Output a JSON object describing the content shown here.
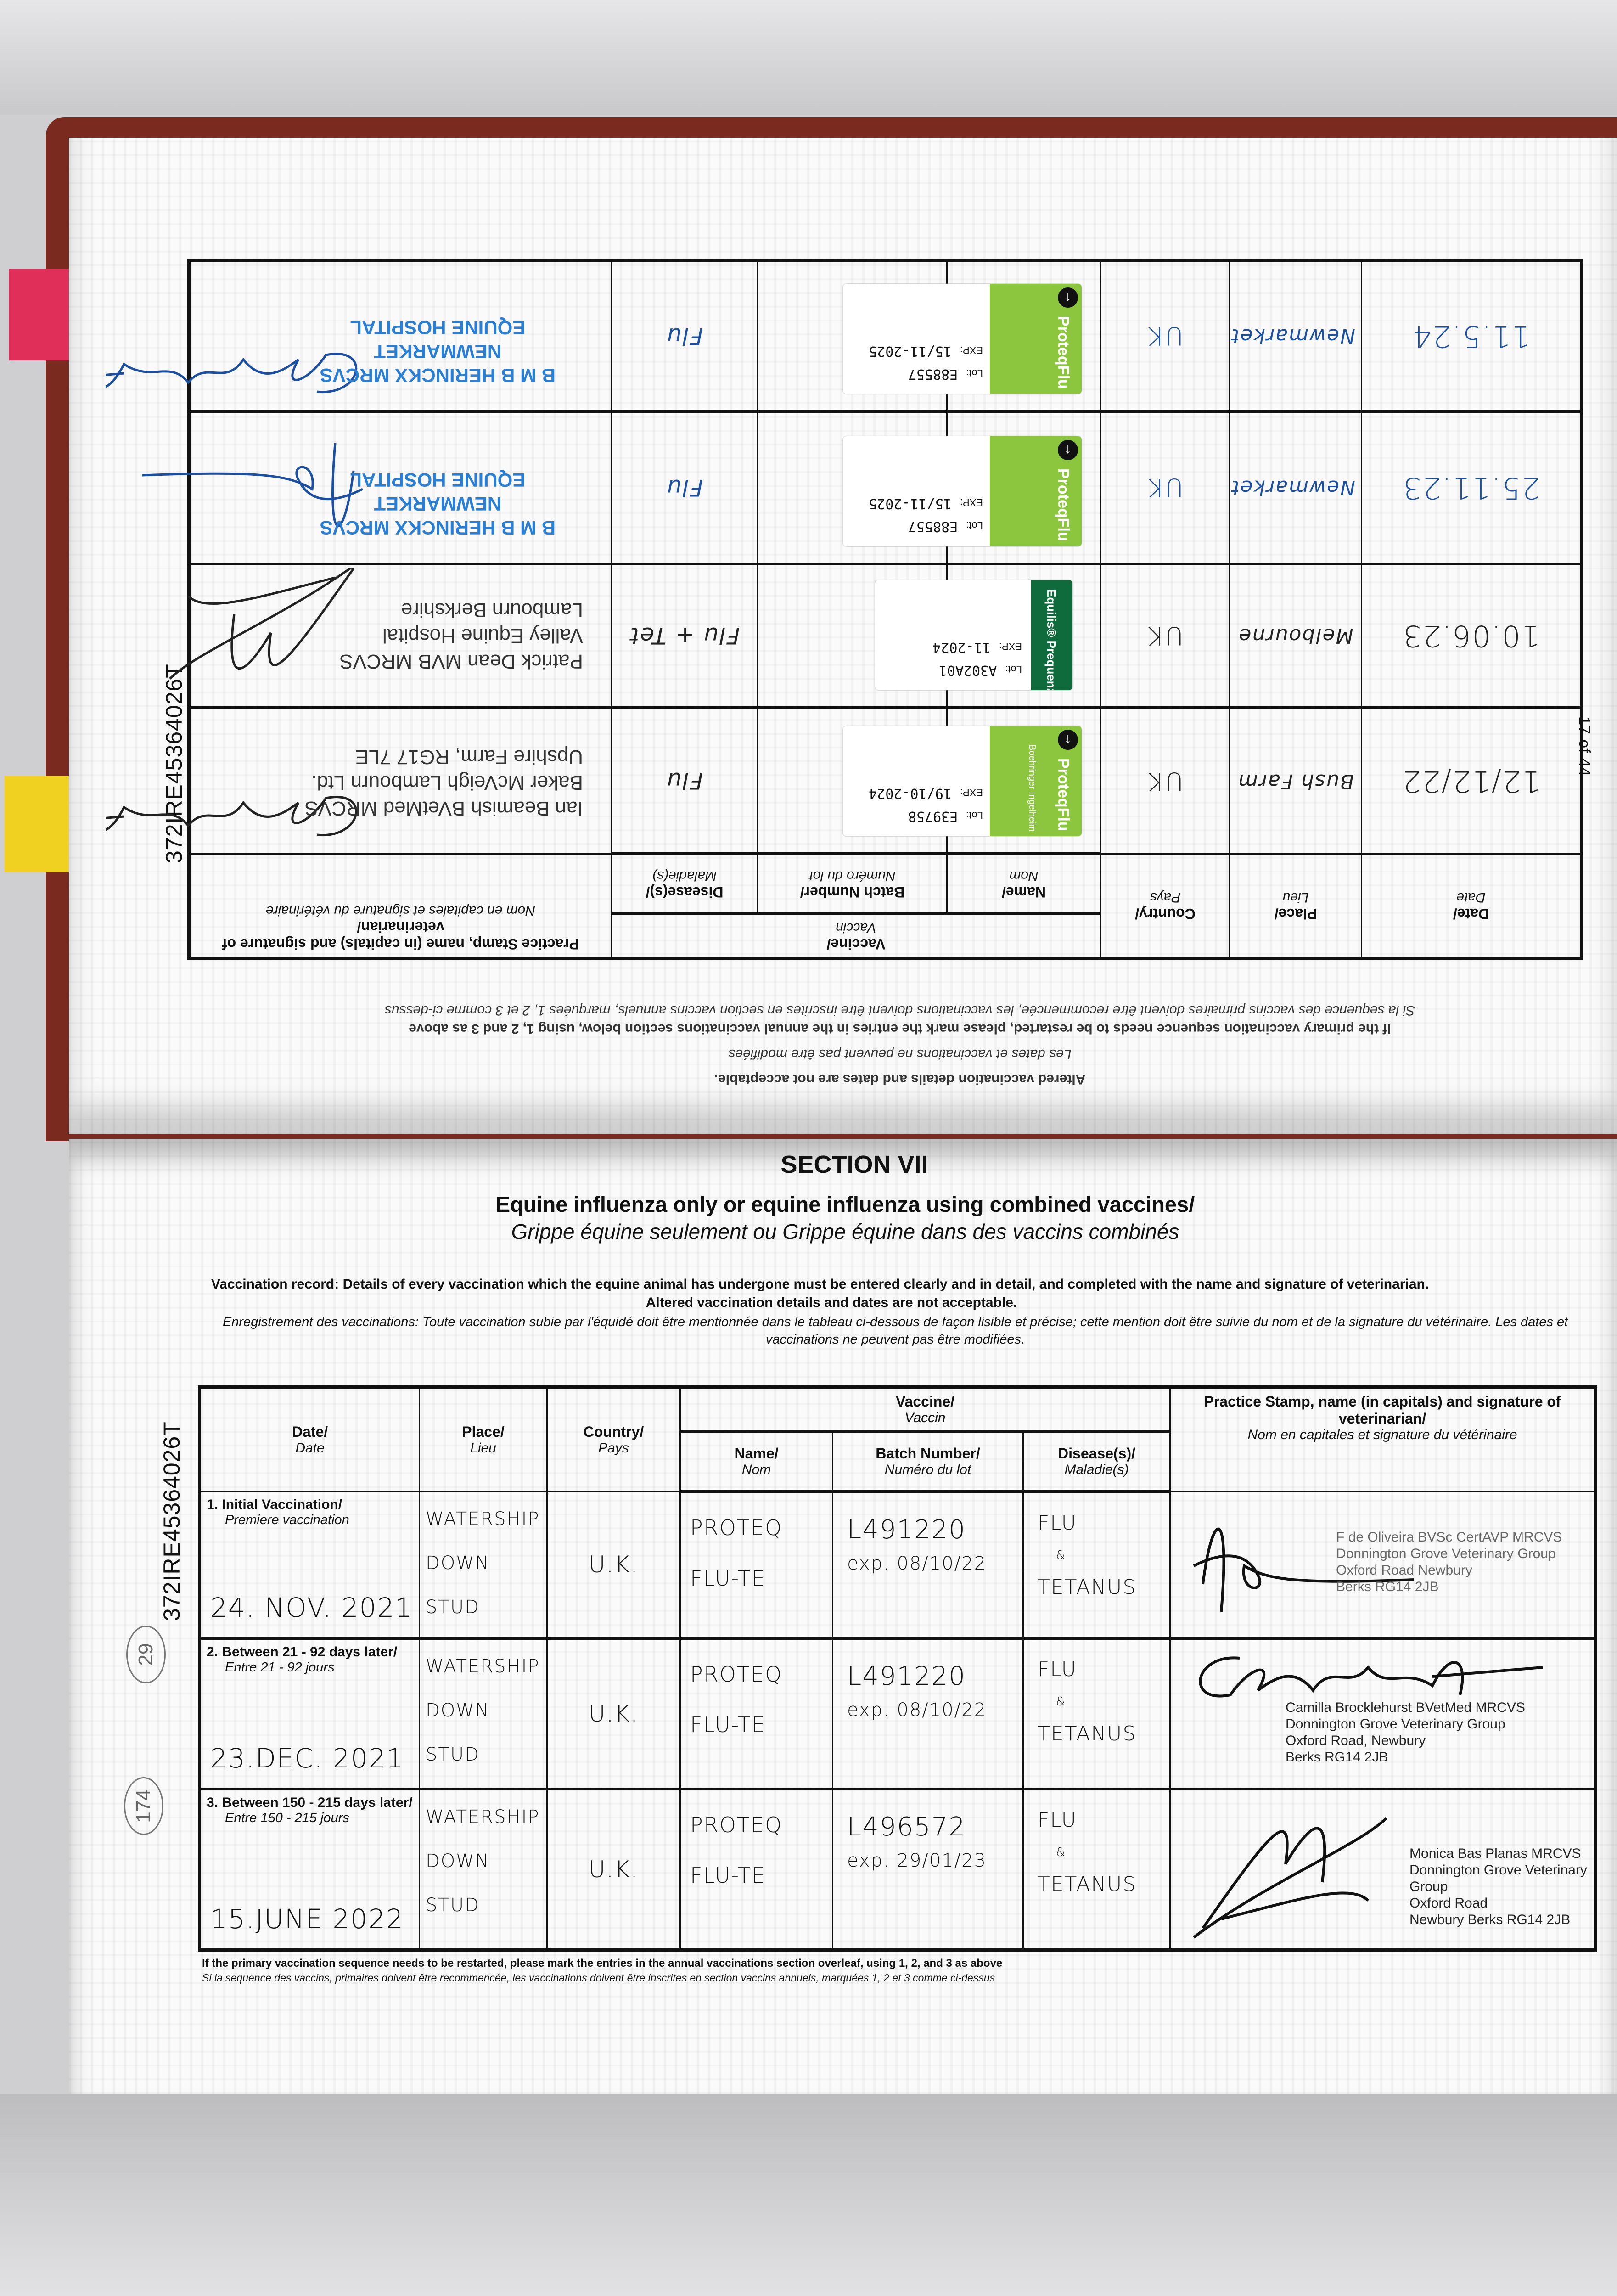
{
  "document_id": "372IRE45364026T",
  "page_number": "17 of 44",
  "circled_marks": [
    "29",
    "174"
  ],
  "colors": {
    "ink_black": "#111111",
    "ink_blue": "#1d4fa0",
    "stamp_blue": "#2a7fd4",
    "proteq_green": "#8cc63f",
    "equilis_green": "#0f6b3c",
    "tab_pink": "#e0305a",
    "tab_yellow": "#f0d020"
  },
  "headers": {
    "date": "Date/",
    "date_fr": "Date",
    "place": "Place/",
    "place_fr": "Lieu",
    "country": "Country/",
    "country_fr": "Pays",
    "vaccine": "Vaccine/",
    "vaccine_fr": "Vaccin",
    "name": "Name/",
    "name_fr": "Nom",
    "batch": "Batch Number/",
    "batch_fr": "Numéro du lot",
    "disease": "Disease(s)/",
    "disease_fr": "Maladie(s)",
    "practice": "Practice Stamp, name (in capitals) and signature of veterinarian/",
    "practice_fr": "Nom en capitales et signature du vétérinaire"
  },
  "previous_page": {
    "notes": [
      {
        "text": "Altered vaccination details and dates are not acceptable.",
        "bold": true
      },
      {
        "text": "Les dates et vaccinations ne peuvent pas être modifiées",
        "bold": false
      },
      {
        "text": "If the primary vaccination sequence needs to be restarted, please mark the entries in the annual vaccinations section below, using 1, 2 and 3 as above",
        "bold": true
      },
      {
        "text": "Si la sequence des vaccins primaires doivent être recommencée, les vaccinations doivent être inscrites en section vaccins annuels, marquées 1, 2 et 3 comme ci-dessus",
        "bold": false
      }
    ],
    "rows": [
      {
        "date": "12/12/22",
        "place": "Bush Farm",
        "country": "UK",
        "disease": "Flu",
        "ink": "#222222",
        "sticker": {
          "brand": "ProteqFlu",
          "maker": "Boehringer Ingelheim",
          "lot_label": "Lot:",
          "exp_label": "EXP:",
          "lot": "E39758",
          "exp": "19/10-2024",
          "style": "proteq"
        },
        "stamp": [
          "Ian Beamish BVetMed MRCVS",
          "Baker McVeigh Lambourn Ltd.",
          "Upshire Farm, RG17 7LE"
        ],
        "stamp_color": "#333333"
      },
      {
        "date": "10.06.23",
        "place": "Melbourne",
        "country": "UK",
        "disease": "Flu + Tet",
        "ink": "#222222",
        "sticker": {
          "brand": "Equilis® Prequenza Te",
          "lot_label": "Lot:",
          "exp_label": "EXP:",
          "lot": "A302A01",
          "exp": "11-2024",
          "style": "equilis"
        },
        "stamp": [
          "Patrick Dean MVB MRCVS",
          "Valley Equine Hospital",
          "Lambourn Berkshire"
        ],
        "stamp_color": "#333333"
      },
      {
        "date": "25.11.23",
        "place": "Newmarket",
        "country": "UK",
        "disease": "Flu",
        "ink": "#1d4fa0",
        "sticker": {
          "brand": "ProteqFlu",
          "lot_label": "Lot:",
          "exp_label": "EXP:",
          "lot": "E88557",
          "exp": "15/11-2025",
          "style": "proteq"
        },
        "stamp": [
          "B M B HERINCKX MRCVS",
          "NEWMARKET",
          "EQUINE HOSPITAL"
        ],
        "stamp_color": "#2a7fd4"
      },
      {
        "date": "11.5.24",
        "place": "Newmarket",
        "country": "UK",
        "disease": "Flu",
        "ink": "#1d4fa0",
        "sticker": {
          "brand": "ProteqFlu",
          "lot_label": "Lot:",
          "exp_label": "EXP:",
          "lot": "E88557",
          "exp": "15/11-2025",
          "style": "proteq"
        },
        "stamp": [
          "B M B HERINCKX MRCVS",
          "NEWMARKET",
          "EQUINE HOSPITAL"
        ],
        "stamp_color": "#2a7fd4"
      }
    ]
  },
  "section": {
    "title": "SECTION VII",
    "heading_en": "Equine influenza only or equine influenza using combined vaccines/",
    "heading_fr": "Grippe équine seulement ou Grippe équine dans des vaccins combinés",
    "instructions_en": "Vaccination record: Details of every vaccination which the equine animal has undergone must be entered clearly and in detail, and completed with the name and signature of veterinarian.",
    "instructions_en_2": "Altered vaccination details and dates are not acceptable.",
    "instructions_fr": "Enregistrement des vaccinations: Toute vaccination subie par l'équidé doit être mentionnée dans le tableau ci-dessous de façon lisible et précise; cette mention doit être suivie du nom et de la signature du vétérinaire. Les dates et vaccinations ne peuvent pas être modifiées."
  },
  "primary_rows": [
    {
      "label": "1. Initial Vaccination/",
      "label_fr": "Premiere vaccination",
      "date": "24. NOV. 2021",
      "place": [
        "WATERSHIP",
        "DOWN",
        "STUD"
      ],
      "country": "U.K.",
      "name": [
        "PROTEQ",
        "FLU-TE"
      ],
      "batch": "L491220",
      "expiry": "exp. 08/10/22",
      "disease": [
        "FLU",
        "&",
        "TETANUS"
      ],
      "stamp": [
        "F de Oliveira BVSc CertAVP MRCVS",
        "Donnington Grove Veterinary Group",
        "Oxford Road Newbury",
        "Berks RG14 2JB"
      ]
    },
    {
      "label": "2. Between 21 - 92 days later/",
      "label_fr": "Entre 21 - 92 jours",
      "date": "23.DEC. 2021",
      "place": [
        "WATERSHIP",
        "DOWN",
        "STUD"
      ],
      "country": "U.K.",
      "name": [
        "PROTEQ",
        "FLU-TE"
      ],
      "batch": "L491220",
      "expiry": "exp. 08/10/22",
      "disease": [
        "FLU",
        "&",
        "TETANUS"
      ],
      "stamp": [
        "Camilla Brocklehurst BVetMed MRCVS",
        "Donnington Grove Veterinary Group",
        "Oxford Road, Newbury",
        "Berks RG14 2JB"
      ]
    },
    {
      "label": "3. Between 150 - 215 days later/",
      "label_fr": "Entre 150 - 215 jours",
      "date": "15.JUNE 2022",
      "place": [
        "WATERSHIP",
        "DOWN",
        "STUD"
      ],
      "country": "U.K.",
      "name": [
        "PROTEQ",
        "FLU-TE"
      ],
      "batch": "L496572",
      "expiry": "exp. 29/01/23",
      "disease": [
        "FLU",
        "&",
        "TETANUS"
      ],
      "stamp": [
        "Monica Bas Planas MRCVS",
        "Donnington Grove Veterinary Group",
        "Oxford Road",
        "Newbury Berks RG14 2JB"
      ]
    }
  ],
  "footnote_en": "If the primary vaccination sequence needs to be restarted, please mark the entries in the annual vaccinations section overleaf, using 1, 2, and 3 as above",
  "footnote_fr": "Si la sequence des vaccins, primaires doivent être recommencée, les vaccinations doivent être inscrites en section vaccins annuels, marquées 1, 2 et 3 comme ci-dessus"
}
